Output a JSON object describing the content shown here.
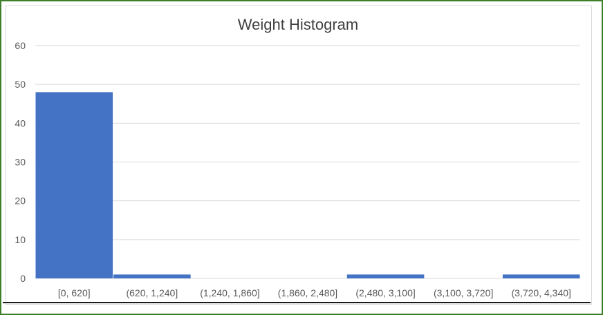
{
  "chart_data": {
    "type": "bar",
    "title": "Weight Histogram",
    "xlabel": "",
    "ylabel": "",
    "categories": [
      "[0, 620]",
      "(620, 1,240]",
      "(1,240, 1,860]",
      "(1,860, 2,480]",
      "(2,480, 3,100]",
      "(3,100, 3,720]",
      "(3,720, 4,340]"
    ],
    "values": [
      48,
      1,
      0,
      0,
      1,
      0,
      1
    ],
    "ylim": [
      0,
      60
    ],
    "yticks": [
      "0",
      "10",
      "20",
      "30",
      "40",
      "50",
      "60"
    ],
    "grid": true,
    "legend": "none",
    "colors": {
      "bar": "#4472c4",
      "gridline": "#d9d9d9",
      "frame_border": "#3f7f2a"
    }
  }
}
